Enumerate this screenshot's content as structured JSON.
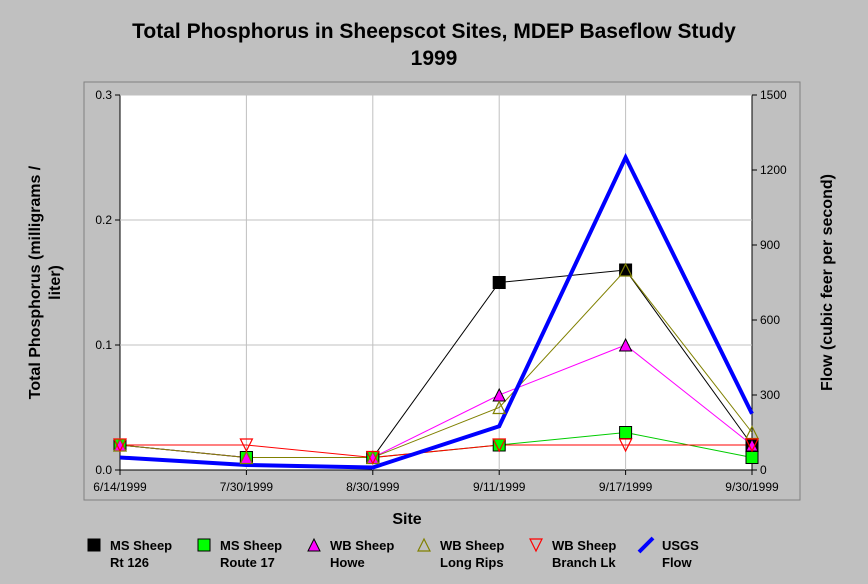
{
  "chart_data": {
    "type": "line",
    "title": "Total Phosphorus in Sheepscot Sites, MDEP Baseflow Study",
    "subtitle": "1999",
    "xlabel": "Site",
    "ylabel": "Total Phosphorus (milligrams / liter)",
    "y2label": "Flow (cubic feer per second)",
    "categories": [
      "6/14/1999",
      "7/30/1999",
      "8/30/1999",
      "9/11/1999",
      "9/17/1999",
      "9/30/1999"
    ],
    "ylim": [
      0,
      0.3
    ],
    "yticks": [
      "0.0",
      "0.1",
      "0.2",
      "0.3"
    ],
    "y2lim": [
      0,
      1500
    ],
    "y2ticks": [
      "0",
      "300",
      "600",
      "900",
      "1200",
      "1500"
    ],
    "grid": true,
    "legend_position": "bottom",
    "series": [
      {
        "name_lines": [
          "MS Sheep",
          "Rt 126"
        ],
        "marker": "square",
        "marker_color": "#000000",
        "line_color": "#000000",
        "axis": "left",
        "values": [
          0.02,
          0.01,
          0.01,
          0.15,
          0.16,
          0.02
        ]
      },
      {
        "name_lines": [
          "MS Sheep",
          "Route 17"
        ],
        "marker": "square",
        "marker_color": "#00ff00",
        "line_color": "#00cc00",
        "axis": "left",
        "values": [
          0.02,
          0.01,
          0.01,
          0.02,
          0.03,
          0.01
        ]
      },
      {
        "name_lines": [
          "WB Sheep",
          "Howe"
        ],
        "marker": "triangle-up",
        "marker_color": "#ff00ff",
        "line_color": "#ff00ff",
        "axis": "left",
        "values": [
          0.02,
          0.01,
          0.01,
          0.06,
          0.1,
          0.02
        ]
      },
      {
        "name_lines": [
          "WB Sheep",
          "Long Rips"
        ],
        "marker": "triangle-up-open",
        "marker_color": "#808000",
        "line_color": "#808000",
        "axis": "left",
        "values": [
          0.02,
          0.01,
          0.01,
          0.05,
          0.16,
          0.03
        ]
      },
      {
        "name_lines": [
          "WB Sheep",
          "Branch Lk"
        ],
        "marker": "triangle-down-open",
        "marker_color": "#ff0000",
        "line_color": "#ff0000",
        "axis": "left",
        "values": [
          0.02,
          0.02,
          0.01,
          0.02,
          0.02,
          0.02
        ]
      },
      {
        "name_lines": [
          "USGS",
          "Flow"
        ],
        "marker": "none",
        "marker_color": "#0000ff",
        "line_color": "#0000ff",
        "axis": "right",
        "values": [
          50,
          20,
          10,
          175,
          1250,
          225
        ]
      }
    ]
  }
}
